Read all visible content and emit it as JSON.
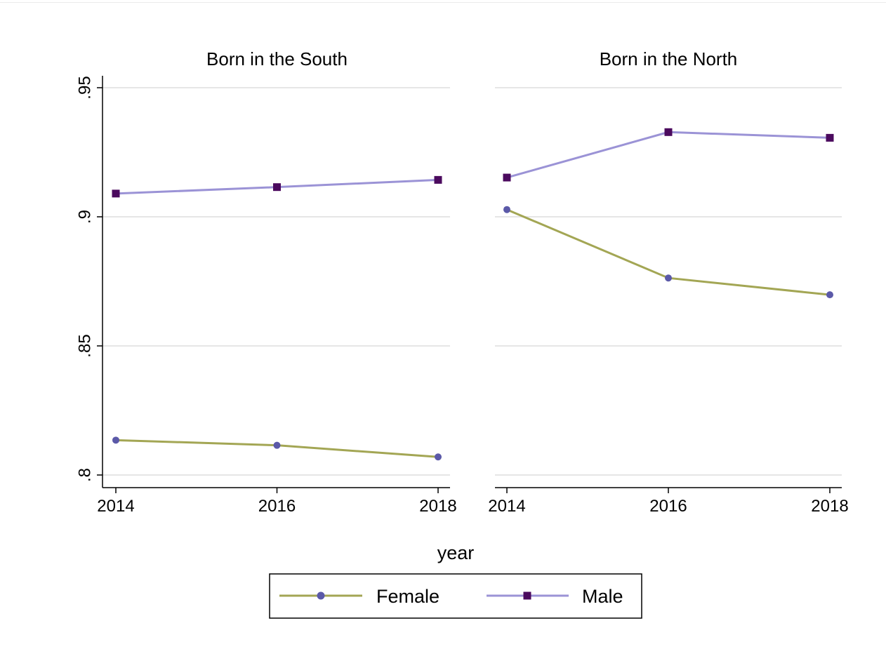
{
  "chart_data": {
    "type": "line",
    "xlabel": "year",
    "ylim": [
      0.795,
      0.955
    ],
    "y_ticks": [
      0.8,
      0.85,
      0.9,
      0.95
    ],
    "y_tick_labels": [
      ".8",
      ".85",
      ".9",
      ".95"
    ],
    "x": [
      2014,
      2016,
      2018
    ],
    "x_tick_labels": [
      "2014",
      "2016",
      "2018"
    ],
    "grid": true,
    "legend_position": "bottom",
    "colors": {
      "Female": "#a3a654",
      "Male": "#9b93d6",
      "female_marker": "#5b59a8",
      "male_marker": "#4b0a5e"
    },
    "legend": [
      "Female",
      "Male"
    ],
    "panels": [
      {
        "title": "Born in the South",
        "series": [
          {
            "name": "Female",
            "marker": "circle",
            "values": [
              0.8135,
              0.8115,
              0.807
            ]
          },
          {
            "name": "Male",
            "marker": "square",
            "values": [
              0.909,
              0.9115,
              0.9143
            ]
          }
        ]
      },
      {
        "title": "Born in the North",
        "series": [
          {
            "name": "Female",
            "marker": "circle",
            "values": [
              0.9028,
              0.8763,
              0.8698
            ]
          },
          {
            "name": "Male",
            "marker": "square",
            "values": [
              0.9152,
              0.9328,
              0.9306
            ]
          }
        ]
      }
    ]
  }
}
